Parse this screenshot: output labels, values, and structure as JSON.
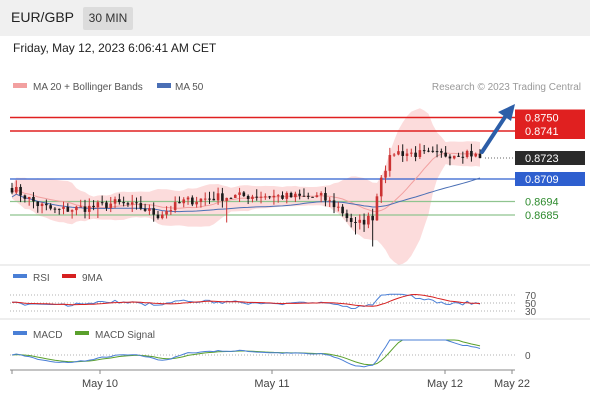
{
  "header": {
    "symbol": "EUR/GBP",
    "timeframe": "30 MIN"
  },
  "datetime": "Friday, May 12, 2023 6:06:41 AM CET",
  "credit": "Research © 2023 Trading Central",
  "colors": {
    "up": "#cc3333",
    "down": "#1a1a1a",
    "ma20": "#f2a0a0",
    "bands": "#fbd6d6",
    "ma50": "#4a6fb5",
    "resistance": "#e02020",
    "support": "#2e8b2e",
    "pivot": "#2e5fcf",
    "arrow": "#2c5ea8",
    "rsi": "#4a7fd6",
    "rsi_ma": "#d62020",
    "macd": "#4a7fd6",
    "macd_signal": "#5aa02c"
  },
  "chart_data": [
    {
      "type": "candlestick",
      "legend": [
        {
          "name": "MA 20 + Bollinger Bands"
        },
        {
          "name": "MA 50"
        }
      ],
      "x_ticks": [
        "May 10",
        "May 11",
        "May 12",
        "May 22"
      ],
      "ylim": [
        0.8655,
        0.8765
      ],
      "levels": [
        {
          "label": "0.8750",
          "value": 0.875,
          "kind": "resistance"
        },
        {
          "label": "0.8741",
          "value": 0.8741,
          "kind": "resistance"
        },
        {
          "label": "0.8723",
          "value": 0.8723,
          "kind": "last"
        },
        {
          "label": "0.8709",
          "value": 0.8709,
          "kind": "pivot"
        },
        {
          "label": "0.8694",
          "value": 0.8694,
          "kind": "support"
        },
        {
          "label": "0.8685",
          "value": 0.8685,
          "kind": "support"
        }
      ],
      "anchors": [
        [
          0,
          0.8703
        ],
        [
          6,
          0.8692
        ],
        [
          10,
          0.8688
        ],
        [
          18,
          0.869
        ],
        [
          24,
          0.8693
        ],
        [
          30,
          0.869
        ],
        [
          34,
          0.8685
        ],
        [
          40,
          0.8694
        ],
        [
          48,
          0.8697
        ],
        [
          58,
          0.8698
        ],
        [
          66,
          0.8697
        ],
        [
          72,
          0.8697
        ],
        [
          76,
          0.869
        ],
        [
          80,
          0.8678
        ],
        [
          84,
          0.8684
        ],
        [
          86,
          0.8712
        ],
        [
          89,
          0.8727
        ],
        [
          93,
          0.8726
        ],
        [
          100,
          0.8725
        ],
        [
          106,
          0.8727
        ],
        [
          109,
          0.8723
        ]
      ],
      "n_bars": 110
    },
    {
      "type": "line",
      "legend": [
        {
          "name": "RSI"
        },
        {
          "name": "9MA"
        }
      ],
      "y_ticks": [
        "70",
        "50",
        "30"
      ],
      "ylim": [
        30,
        70
      ]
    },
    {
      "type": "line",
      "legend": [
        {
          "name": "MACD"
        },
        {
          "name": "MACD Signal"
        }
      ],
      "y_ticks": [
        "0"
      ]
    }
  ]
}
